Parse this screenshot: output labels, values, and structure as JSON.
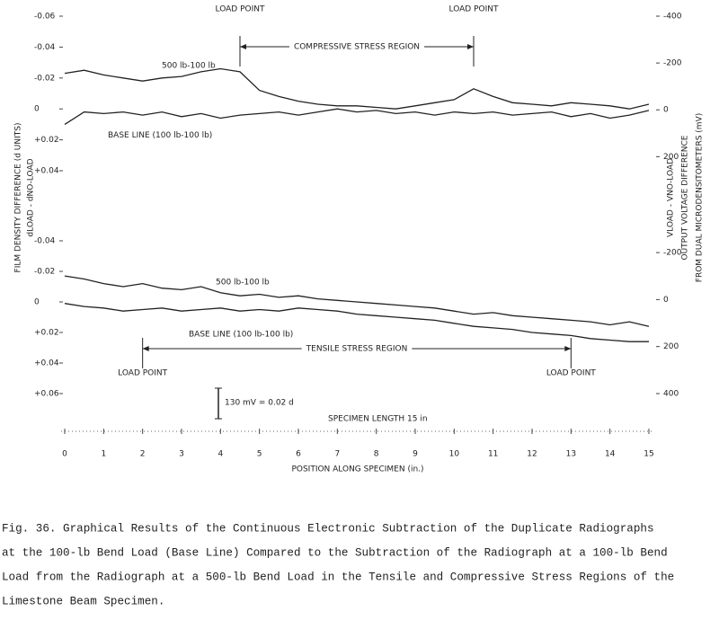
{
  "chart_data": [
    {
      "type": "line",
      "x": [
        0,
        0.5,
        1,
        1.5,
        2,
        2.5,
        3,
        3.5,
        4,
        4.5,
        5,
        5.5,
        6,
        6.5,
        7,
        7.5,
        8,
        8.5,
        9,
        9.5,
        10,
        10.5,
        11,
        11.5,
        12,
        12.5,
        13,
        13.5,
        14,
        14.5,
        15
      ],
      "xlim": [
        0,
        15
      ],
      "ylim": [
        0.04,
        -0.06
      ],
      "yticks": [
        -0.06,
        -0.04,
        -0.02,
        0,
        {
          "value": 0.02,
          "label": "+0.02"
        },
        {
          "value": 0.04,
          "label": "+0.04"
        }
      ],
      "y2lim": [
        260,
        -400
      ],
      "y2ticks": [
        -400,
        -200,
        0,
        {
          "value": 200,
          "label": "200"
        }
      ],
      "series": [
        {
          "name": "500 lb-100 lb",
          "color": "#222",
          "values": [
            -0.023,
            -0.025,
            -0.022,
            -0.02,
            -0.018,
            -0.02,
            -0.021,
            -0.024,
            -0.026,
            -0.024,
            -0.012,
            -0.008,
            -0.005,
            -0.003,
            -0.002,
            -0.002,
            -0.001,
            0,
            -0.002,
            -0.004,
            -0.006,
            -0.013,
            -0.008,
            -0.004,
            -0.003,
            -0.002,
            -0.004,
            -0.003,
            -0.002,
            0,
            -0.003
          ]
        },
        {
          "name": "BASE LINE (100 lb-100 lb)",
          "color": "#222",
          "values": [
            0.01,
            0.002,
            0.003,
            0.002,
            0.004,
            0.002,
            0.005,
            0.003,
            0.006,
            0.004,
            0.003,
            0.002,
            0.004,
            0.002,
            0,
            0.002,
            0.001,
            0.003,
            0.002,
            0.004,
            0.002,
            0.003,
            0.002,
            0.004,
            0.003,
            0.002,
            0.005,
            0.003,
            0.006,
            0.004,
            0.001
          ]
        }
      ],
      "load_points": [
        4.5,
        10.5
      ],
      "load_label": "LOAD POINT",
      "region": "COMPRESSIVE STRESS REGION"
    },
    {
      "type": "line",
      "x": [
        0,
        0.5,
        1,
        1.5,
        2,
        2.5,
        3,
        3.5,
        4,
        4.5,
        5,
        5.5,
        6,
        6.5,
        7,
        7.5,
        8,
        8.5,
        9,
        9.5,
        10,
        10.5,
        11,
        11.5,
        12,
        12.5,
        13,
        13.5,
        14,
        14.5,
        15
      ],
      "xlim": [
        0,
        15
      ],
      "ylim": [
        0.06,
        -0.04
      ],
      "yticks": [
        -0.04,
        -0.02,
        0,
        {
          "value": 0.02,
          "label": "+0.02"
        },
        {
          "value": 0.04,
          "label": "+0.04"
        },
        {
          "value": 0.06,
          "label": "+0.06"
        }
      ],
      "y2lim": [
        400,
        -250
      ],
      "y2ticks": [
        -200,
        0,
        200,
        400
      ],
      "xticks": [
        0,
        1,
        2,
        3,
        4,
        5,
        6,
        7,
        8,
        9,
        10,
        11,
        12,
        13,
        14,
        15
      ],
      "series": [
        {
          "name": "500 lb-100 lb",
          "color": "#222",
          "values": [
            -0.017,
            -0.015,
            -0.012,
            -0.01,
            -0.012,
            -0.009,
            -0.008,
            -0.01,
            -0.006,
            -0.004,
            -0.005,
            -0.003,
            -0.004,
            -0.002,
            -0.001,
            0,
            0.001,
            0.002,
            0.003,
            0.004,
            0.006,
            0.008,
            0.007,
            0.009,
            0.01,
            0.011,
            0.012,
            0.013,
            0.015,
            0.013,
            0.016
          ]
        },
        {
          "name": "BASE LINE (100 lb-100 lb)",
          "color": "#222",
          "values": [
            0.001,
            0.003,
            0.004,
            0.006,
            0.005,
            0.004,
            0.006,
            0.005,
            0.004,
            0.006,
            0.005,
            0.006,
            0.004,
            0.005,
            0.006,
            0.008,
            0.009,
            0.01,
            0.011,
            0.012,
            0.014,
            0.016,
            0.017,
            0.018,
            0.02,
            0.021,
            0.022,
            0.024,
            0.025,
            0.026,
            0.026
          ]
        }
      ],
      "load_points": [
        2,
        13
      ],
      "load_label": "LOAD POINT",
      "region": "TENSILE STRESS REGION"
    }
  ],
  "x_label": "POSITION ALONG SPECIMEN (in.)",
  "scale_note": "130 mV = 0.02 d",
  "specimen_length": "SPECIMEN LENGTH 15 in",
  "y_label": "FILM DENSITY DIFFERENCE (d UNITS)",
  "y_label_2": "dLOAD - dNO-LOAD",
  "y2_label": "VLOAD - VNO-LOAD",
  "y2_label_2": "OUTPUT VOLTAGE DIFFERENCE",
  "y2_label_3": "FROM DUAL MICRODENSITOMETERS (mV)",
  "caption": [
    "Fig. 36.  Graphical Results of the Continuous Electronic Subtraction of the Duplicate Radiographs",
    "at the 100-lb Bend Load (Base Line) Compared to the Subtraction of the Radiograph at a 100-lb Bend",
    "Load from the Radiograph at a 500-lb Bend Load in the Tensile and Compressive Stress Regions of the",
    "Limestone Beam Specimen."
  ]
}
